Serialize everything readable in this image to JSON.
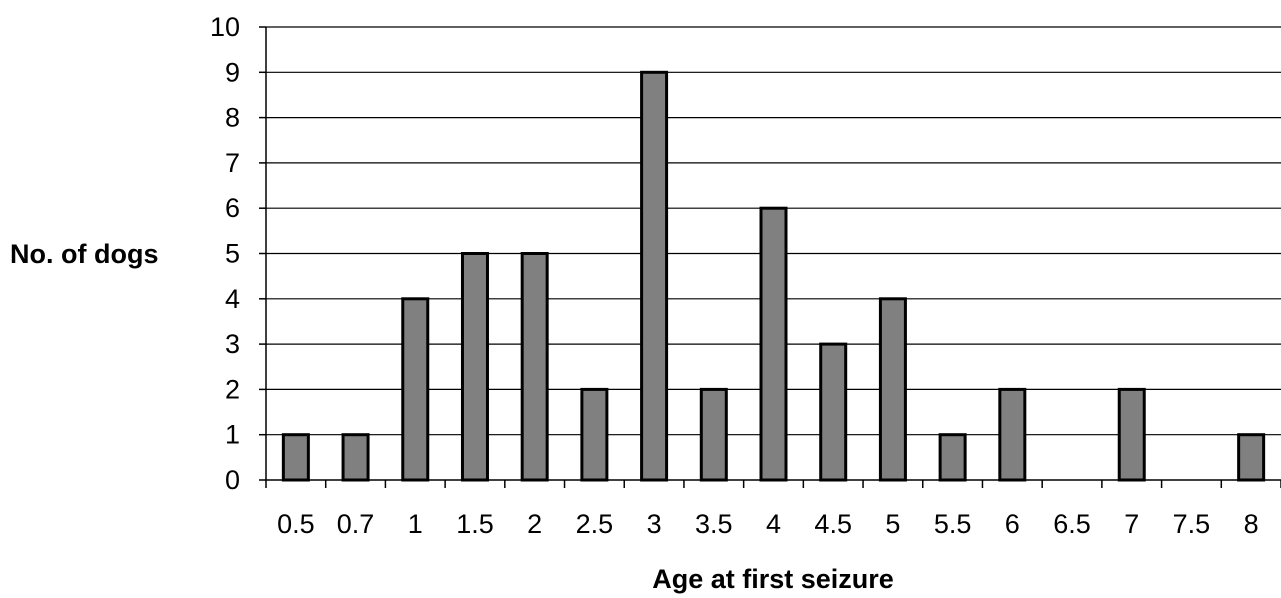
{
  "chart_data": {
    "type": "bar",
    "xlabel": "Age at first seizure",
    "ylabel": "No. of dogs",
    "categories": [
      "0.5",
      "0.7",
      "1",
      "1.5",
      "2",
      "2.5",
      "3",
      "3.5",
      "4",
      "4.5",
      "5",
      "5.5",
      "6",
      "6.5",
      "7",
      "7.5",
      "8"
    ],
    "values": [
      1,
      1,
      4,
      5,
      5,
      2,
      9,
      2,
      6,
      3,
      4,
      1,
      2,
      0,
      2,
      0,
      1
    ],
    "ylim": [
      0,
      10
    ],
    "yticks": [
      0,
      1,
      2,
      3,
      4,
      5,
      6,
      7,
      8,
      9,
      10
    ],
    "grid": true,
    "legend": "none",
    "colors": {
      "bar_fill": "#808080",
      "bar_edge": "#000000",
      "gridline": "#000000"
    }
  }
}
